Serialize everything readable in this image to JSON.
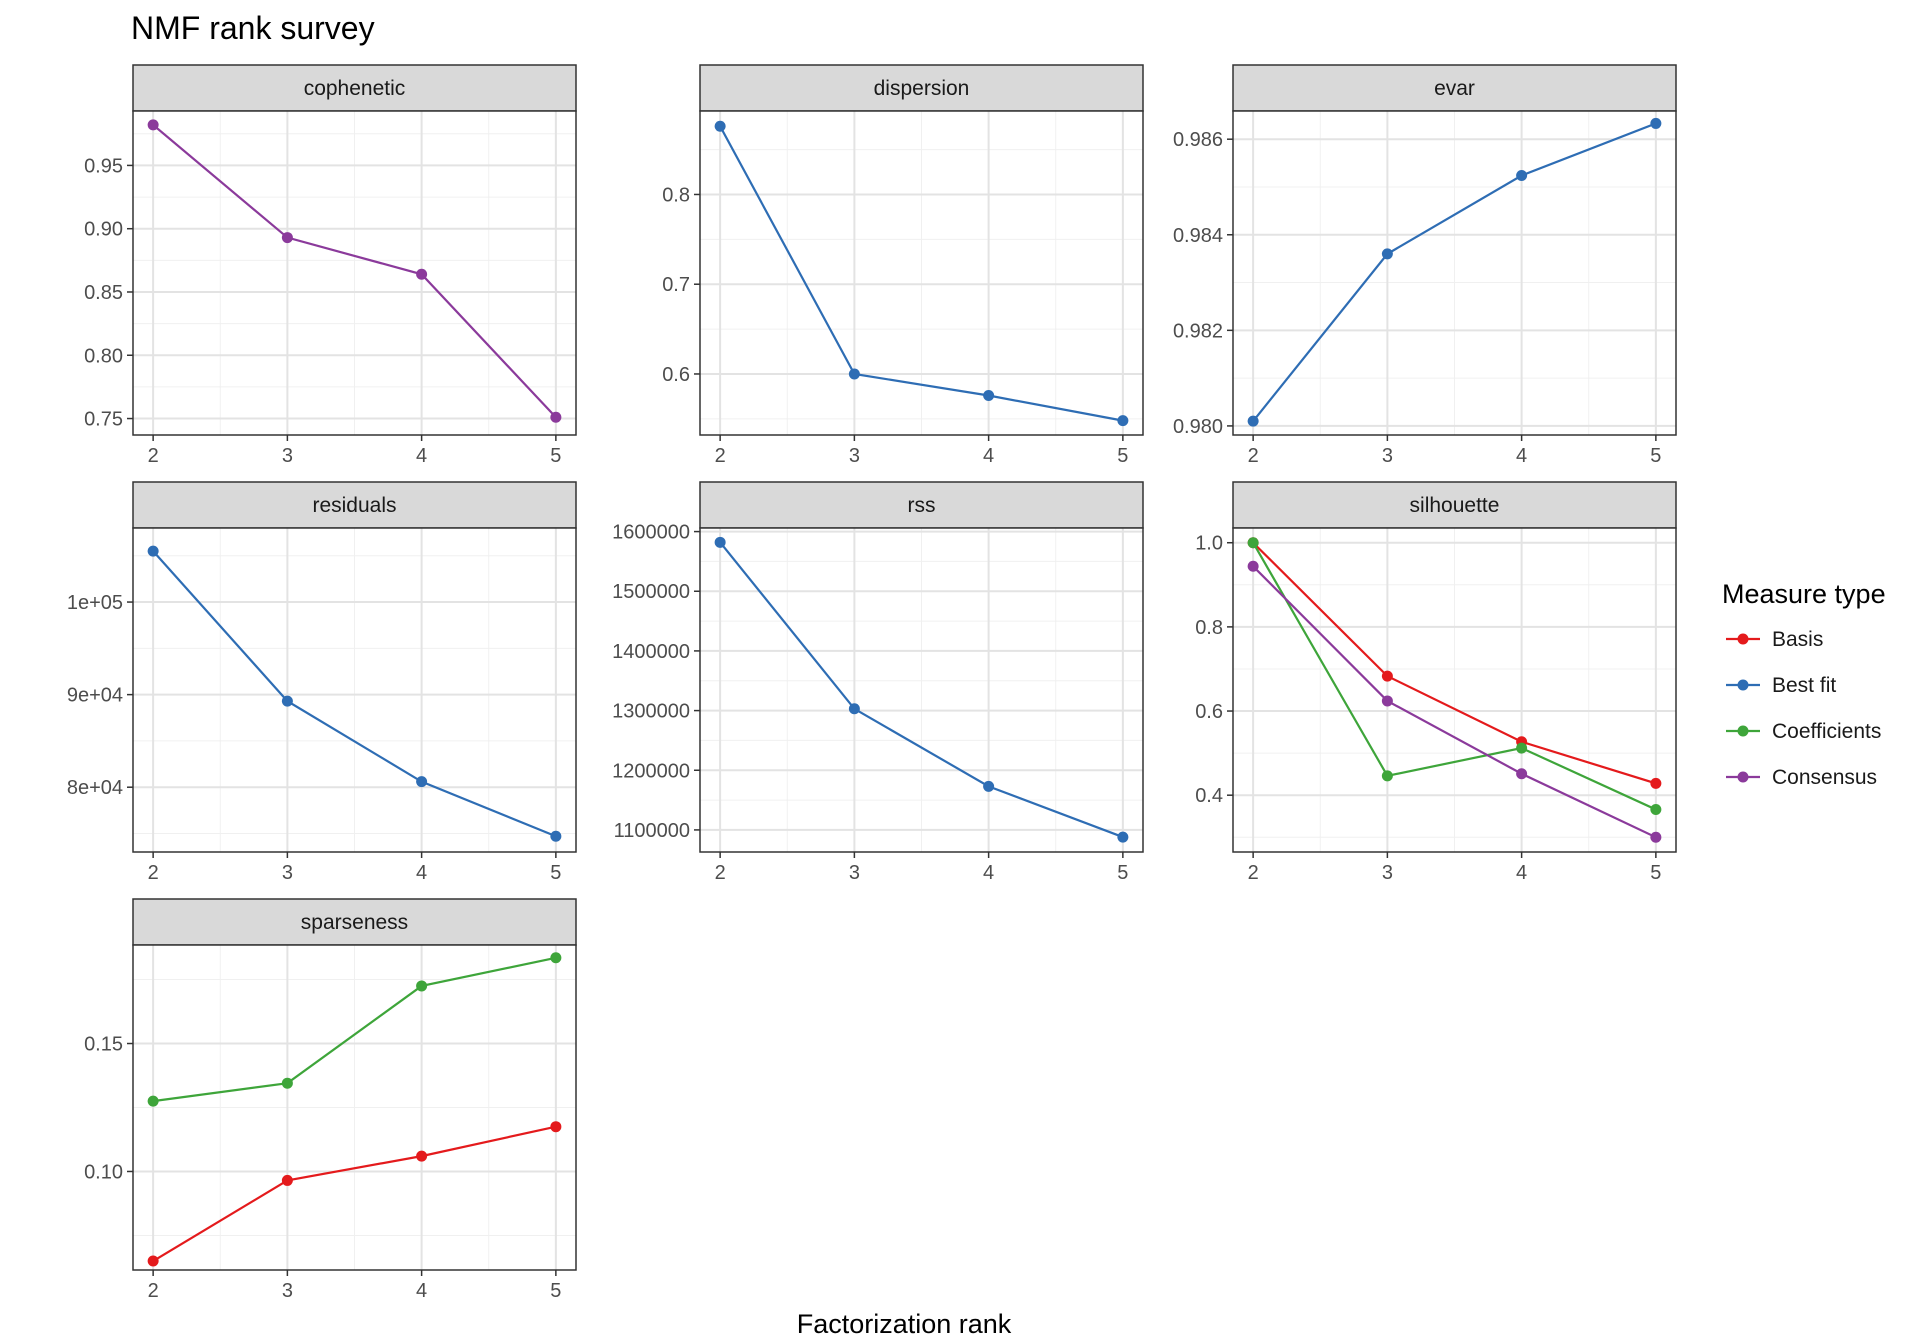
{
  "title": "NMF rank survey",
  "xlabel": "Factorization rank",
  "legend": {
    "title": "Measure type",
    "position": "right",
    "items": [
      {
        "name": "Basis",
        "color": "#E41A1C"
      },
      {
        "name": "Best fit",
        "color": "#2E6DB4"
      },
      {
        "name": "Coefficients",
        "color": "#3EA53A"
      },
      {
        "name": "Consensus",
        "color": "#8B3A9B"
      }
    ]
  },
  "chart_data": [
    {
      "type": "line",
      "panel": "cophenetic",
      "x": [
        2,
        3,
        4,
        5
      ],
      "ylim": [
        0.737,
        0.993
      ],
      "ticks": [
        0.75,
        0.8,
        0.85,
        0.9,
        0.95
      ],
      "tick_labels": [
        "0.75",
        "0.80",
        "0.85",
        "0.90",
        "0.95"
      ],
      "series": [
        {
          "name": "Consensus",
          "values": [
            0.982,
            0.893,
            0.864,
            0.751
          ]
        }
      ]
    },
    {
      "type": "line",
      "panel": "dispersion",
      "x": [
        2,
        3,
        4,
        5
      ],
      "ylim": [
        0.532,
        0.893
      ],
      "ticks": [
        0.6,
        0.7,
        0.8
      ],
      "tick_labels": [
        "0.6",
        "0.7",
        "0.8"
      ],
      "series": [
        {
          "name": "Best fit",
          "values": [
            0.876,
            0.6,
            0.576,
            0.548
          ]
        }
      ]
    },
    {
      "type": "line",
      "panel": "evar",
      "x": [
        2,
        3,
        4,
        5
      ],
      "ylim": [
        0.97981,
        0.98659
      ],
      "ticks": [
        0.98,
        0.982,
        0.984,
        0.986
      ],
      "tick_labels": [
        "0.980",
        "0.982",
        "0.984",
        "0.986"
      ],
      "series": [
        {
          "name": "Best fit",
          "values": [
            0.9801,
            0.9836,
            0.98524,
            0.98633
          ]
        }
      ]
    },
    {
      "type": "line",
      "panel": "residuals",
      "x": [
        2,
        3,
        4,
        5
      ],
      "ylim": [
        73000,
        108000
      ],
      "ticks": [
        80000,
        90000,
        100000
      ],
      "tick_labels": [
        "8e+04",
        "9e+04",
        "1e+05"
      ],
      "series": [
        {
          "name": "Best fit",
          "values": [
            105500,
            89300,
            80600,
            74700
          ]
        }
      ]
    },
    {
      "type": "line",
      "panel": "rss",
      "x": [
        2,
        3,
        4,
        5
      ],
      "ylim": [
        1063000,
        1606000
      ],
      "ticks": [
        1100000,
        1200000,
        1300000,
        1400000,
        1500000,
        1600000
      ],
      "tick_labels": [
        "1100000",
        "1200000",
        "1300000",
        "1400000",
        "1500000",
        "1600000"
      ],
      "series": [
        {
          "name": "Best fit",
          "values": [
            1582000,
            1303000,
            1173000,
            1088000
          ]
        }
      ]
    },
    {
      "type": "line",
      "panel": "silhouette",
      "x": [
        2,
        3,
        4,
        5
      ],
      "ylim": [
        0.265,
        1.035
      ],
      "ticks": [
        0.4,
        0.6,
        0.8,
        1.0
      ],
      "tick_labels": [
        "0.4",
        "0.6",
        "0.8",
        "1.0"
      ],
      "series": [
        {
          "name": "Basis",
          "values": [
            1.0,
            0.683,
            0.527,
            0.428
          ]
        },
        {
          "name": "Coefficients",
          "values": [
            1.0,
            0.446,
            0.512,
            0.366
          ]
        },
        {
          "name": "Consensus",
          "values": [
            0.944,
            0.624,
            0.451,
            0.3
          ]
        }
      ]
    },
    {
      "type": "line",
      "panel": "sparseness",
      "x": [
        2,
        3,
        4,
        5
      ],
      "ylim": [
        0.0615,
        0.1885
      ],
      "ticks": [
        0.1,
        0.15
      ],
      "tick_labels": [
        "0.10",
        "0.15"
      ],
      "series": [
        {
          "name": "Basis",
          "values": [
            0.065,
            0.0965,
            0.106,
            0.1175
          ]
        },
        {
          "name": "Coefficients",
          "values": [
            0.1275,
            0.1345,
            0.1725,
            0.1835
          ]
        }
      ]
    }
  ]
}
